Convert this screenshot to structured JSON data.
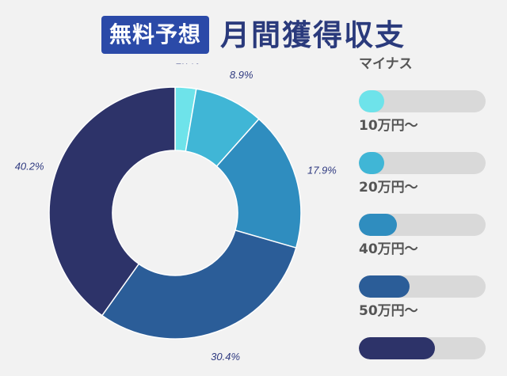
{
  "header": {
    "badge": "無料予想",
    "title": "月間獲得収支"
  },
  "colors": {
    "background": "#f2f2f2",
    "badge_bg": "#2b4aa8",
    "title": "#2a3a7c",
    "track": "#d9d9d9",
    "label_text": "#555555",
    "pct_text": "#2f3a80"
  },
  "chart_data": {
    "type": "pie",
    "style": "donut",
    "categories": [
      "マイナス",
      "10万円〜",
      "20万円〜",
      "40万円〜",
      "50万円〜"
    ],
    "values": [
      2.7,
      8.9,
      17.9,
      30.4,
      40.2
    ],
    "labels": [
      "2.7%",
      "8.9%",
      "17.9%",
      "30.4%",
      "40.2%"
    ],
    "colors": [
      "#6ee3ea",
      "#40b6d6",
      "#2f8dbf",
      "#2b5d98",
      "#2d3369"
    ],
    "legend_position": "right",
    "legend_bar_levels": [
      0.2,
      0.2,
      0.3,
      0.4,
      0.6
    ]
  }
}
